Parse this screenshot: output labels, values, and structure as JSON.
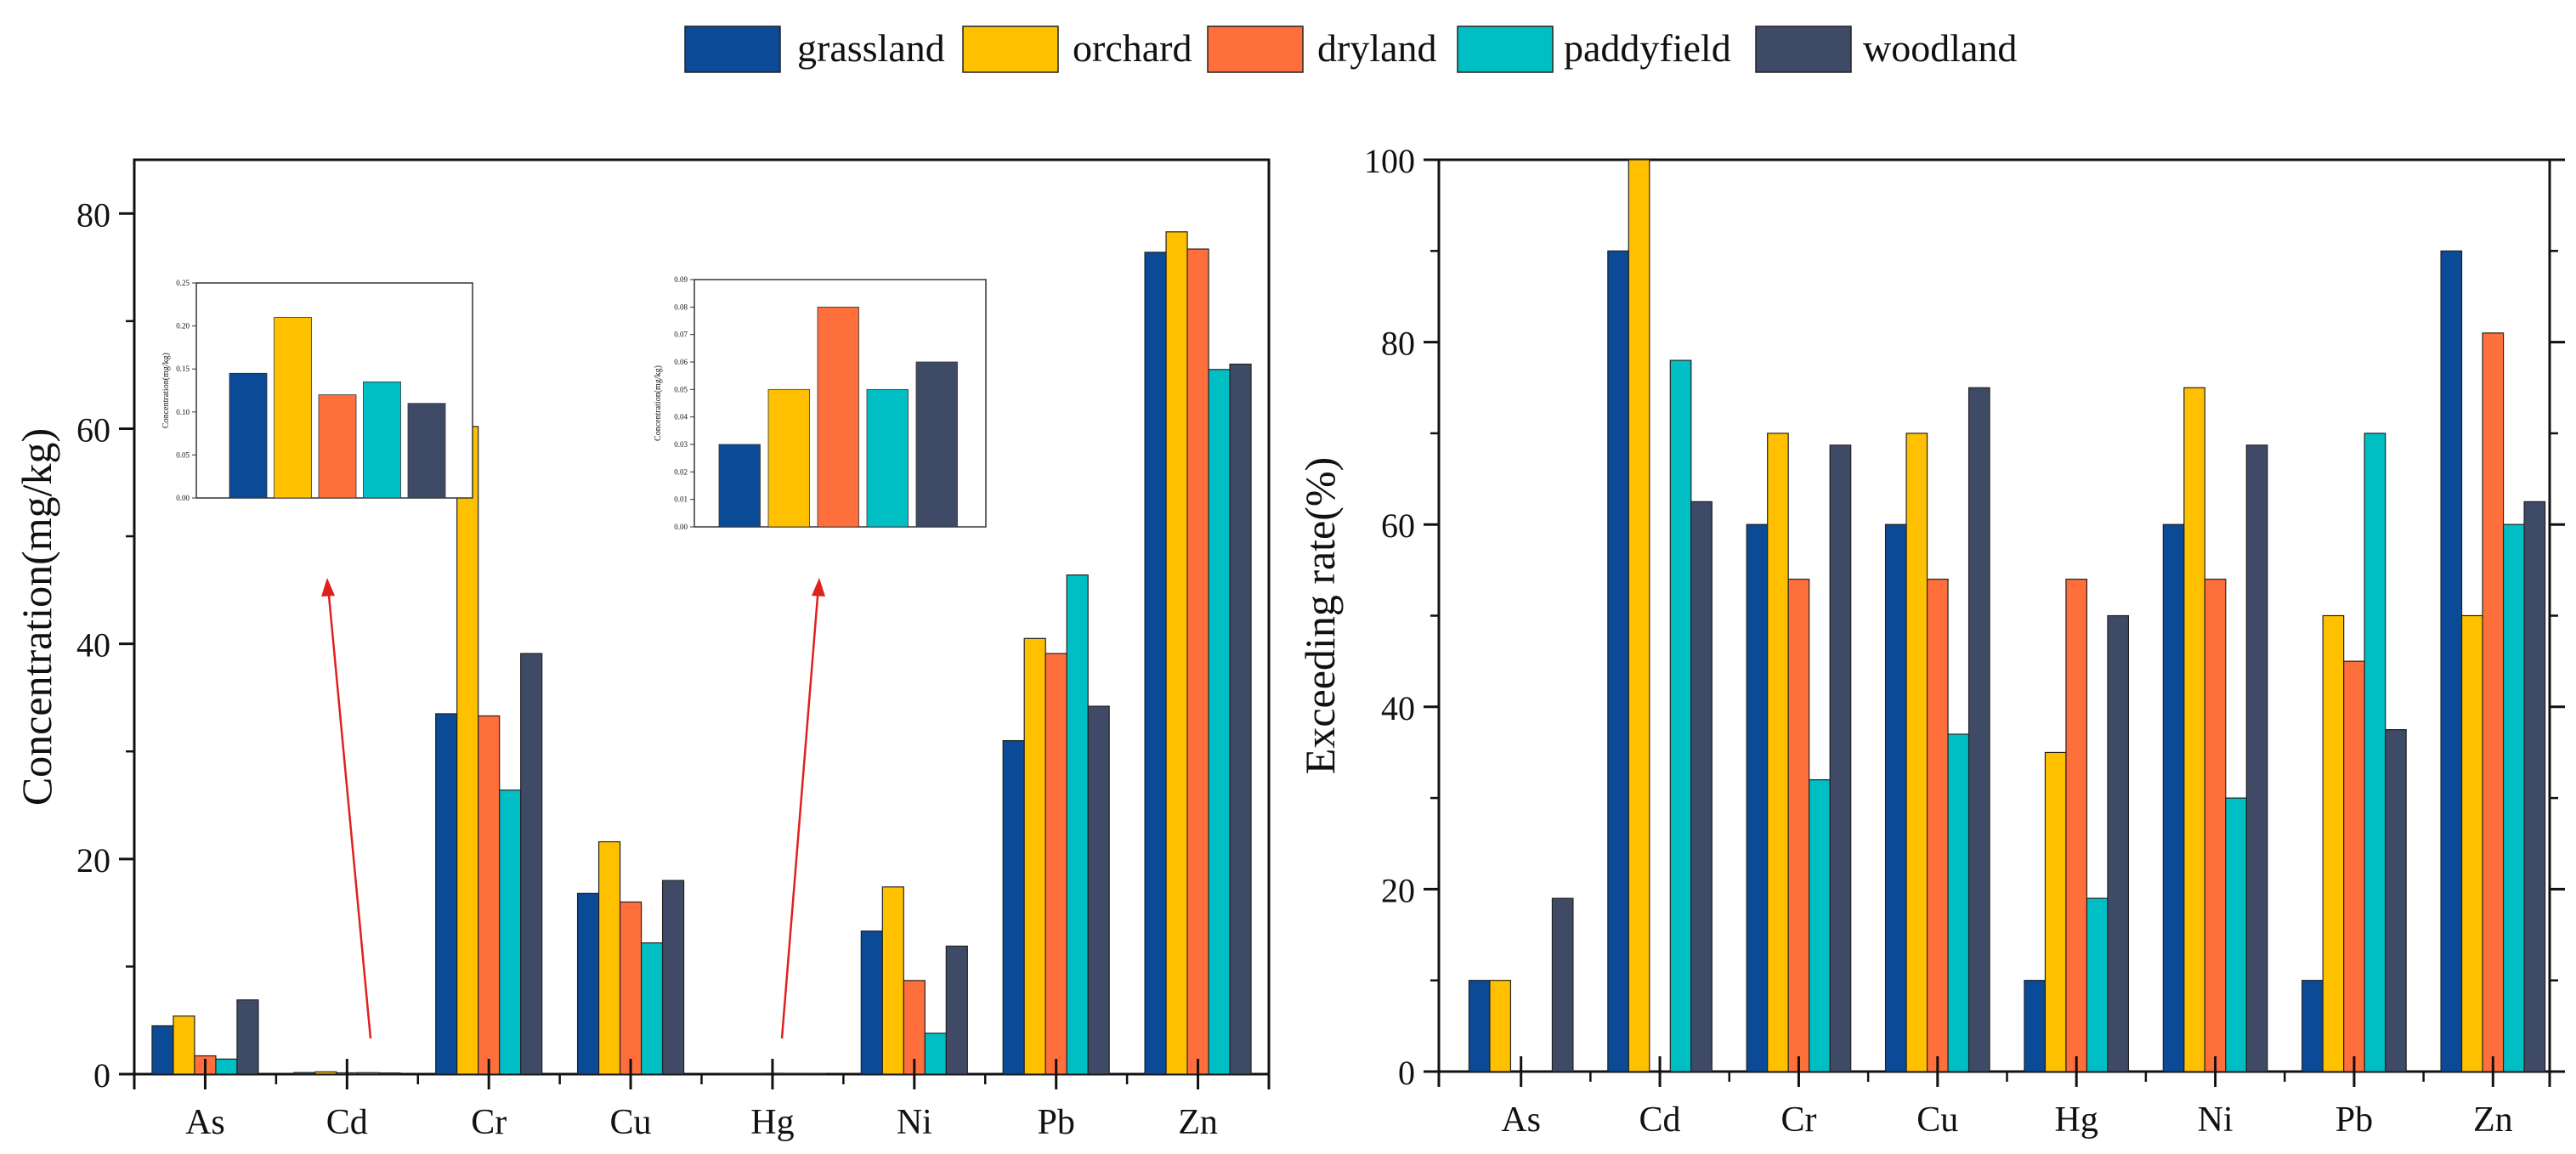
{
  "legend": {
    "placement": "top-center",
    "items": [
      {
        "name": "grassland",
        "color": "#0A4A96"
      },
      {
        "name": "orchard",
        "color": "#FFC000"
      },
      {
        "name": "dryland",
        "color": "#FF6F3C"
      },
      {
        "name": "paddyfield",
        "color": "#00BFC4"
      },
      {
        "name": "woodland",
        "color": "#3F4A66"
      }
    ]
  },
  "chart_data": [
    {
      "id": "concentration",
      "type": "bar",
      "title": "",
      "xlabel": "",
      "ylabel": "Concentration(mg/kg)",
      "categories": [
        "As",
        "Cd",
        "Cr",
        "Cu",
        "Hg",
        "Ni",
        "Pb",
        "Zn"
      ],
      "ylim": [
        0,
        85
      ],
      "yticks": [
        "0",
        "20",
        "40",
        "60",
        "80"
      ],
      "grid": false,
      "series": [
        {
          "name": "grassland",
          "values": [
            4.5,
            0.145,
            33.5,
            16.8,
            0.03,
            13.3,
            31.0,
            76.4
          ]
        },
        {
          "name": "orchard",
          "values": [
            5.4,
            0.21,
            60.2,
            21.6,
            0.05,
            17.4,
            40.5,
            78.3
          ]
        },
        {
          "name": "dryland",
          "values": [
            1.7,
            0.12,
            33.3,
            16.0,
            0.08,
            8.7,
            39.1,
            76.7
          ]
        },
        {
          "name": "paddyfield",
          "values": [
            1.4,
            0.135,
            26.4,
            12.2,
            0.05,
            3.8,
            46.4,
            65.5
          ]
        },
        {
          "name": "woodland",
          "values": [
            6.9,
            0.11,
            39.1,
            18.0,
            0.06,
            11.9,
            34.2,
            66.0
          ]
        }
      ]
    },
    {
      "id": "cd-inset",
      "type": "bar",
      "title": "",
      "xlabel": "",
      "ylabel": "Concentration(mg/kg)",
      "categories": [
        "grassland",
        "orchard",
        "dryland",
        "paddyfield",
        "woodland"
      ],
      "values": [
        0.145,
        0.21,
        0.12,
        0.135,
        0.11
      ],
      "ylim": [
        0,
        0.25
      ],
      "yticks": [
        "0.00",
        "0.05",
        "0.10",
        "0.15",
        "0.20",
        "0.25"
      ],
      "grid": false
    },
    {
      "id": "hg-inset",
      "type": "bar",
      "title": "",
      "xlabel": "",
      "ylabel": "Concentration(mg/kg)",
      "categories": [
        "grassland",
        "orchard",
        "dryland",
        "paddyfield",
        "woodland"
      ],
      "values": [
        0.03,
        0.05,
        0.08,
        0.05,
        0.06
      ],
      "ylim": [
        0,
        0.09
      ],
      "yticks": [
        "0.00",
        "0.01",
        "0.02",
        "0.03",
        "0.04",
        "0.05",
        "0.06",
        "0.07",
        "0.08",
        "0.09"
      ],
      "grid": false
    },
    {
      "id": "exceeding",
      "type": "bar",
      "title": "",
      "xlabel": "",
      "ylabel": "Exceeding rate(%)",
      "categories": [
        "As",
        "Cd",
        "Cr",
        "Cu",
        "Hg",
        "Ni",
        "Pb",
        "Zn"
      ],
      "ylim": [
        0,
        100
      ],
      "yticks": [
        "0",
        "20",
        "40",
        "60",
        "80",
        "100"
      ],
      "grid": false,
      "series": [
        {
          "name": "grassland",
          "values": [
            10,
            90,
            60,
            60,
            10,
            60,
            10,
            90
          ]
        },
        {
          "name": "orchard",
          "values": [
            10,
            100,
            70,
            70,
            35,
            75,
            50,
            50
          ]
        },
        {
          "name": "dryland",
          "values": [
            0,
            0,
            54,
            54,
            54,
            54,
            45,
            81
          ]
        },
        {
          "name": "paddyfield",
          "values": [
            0,
            78,
            32,
            37,
            19,
            30,
            70,
            60
          ]
        },
        {
          "name": "woodland",
          "values": [
            19,
            62.5,
            68.7,
            75,
            50,
            68.7,
            37.5,
            62.5
          ]
        }
      ]
    }
  ]
}
